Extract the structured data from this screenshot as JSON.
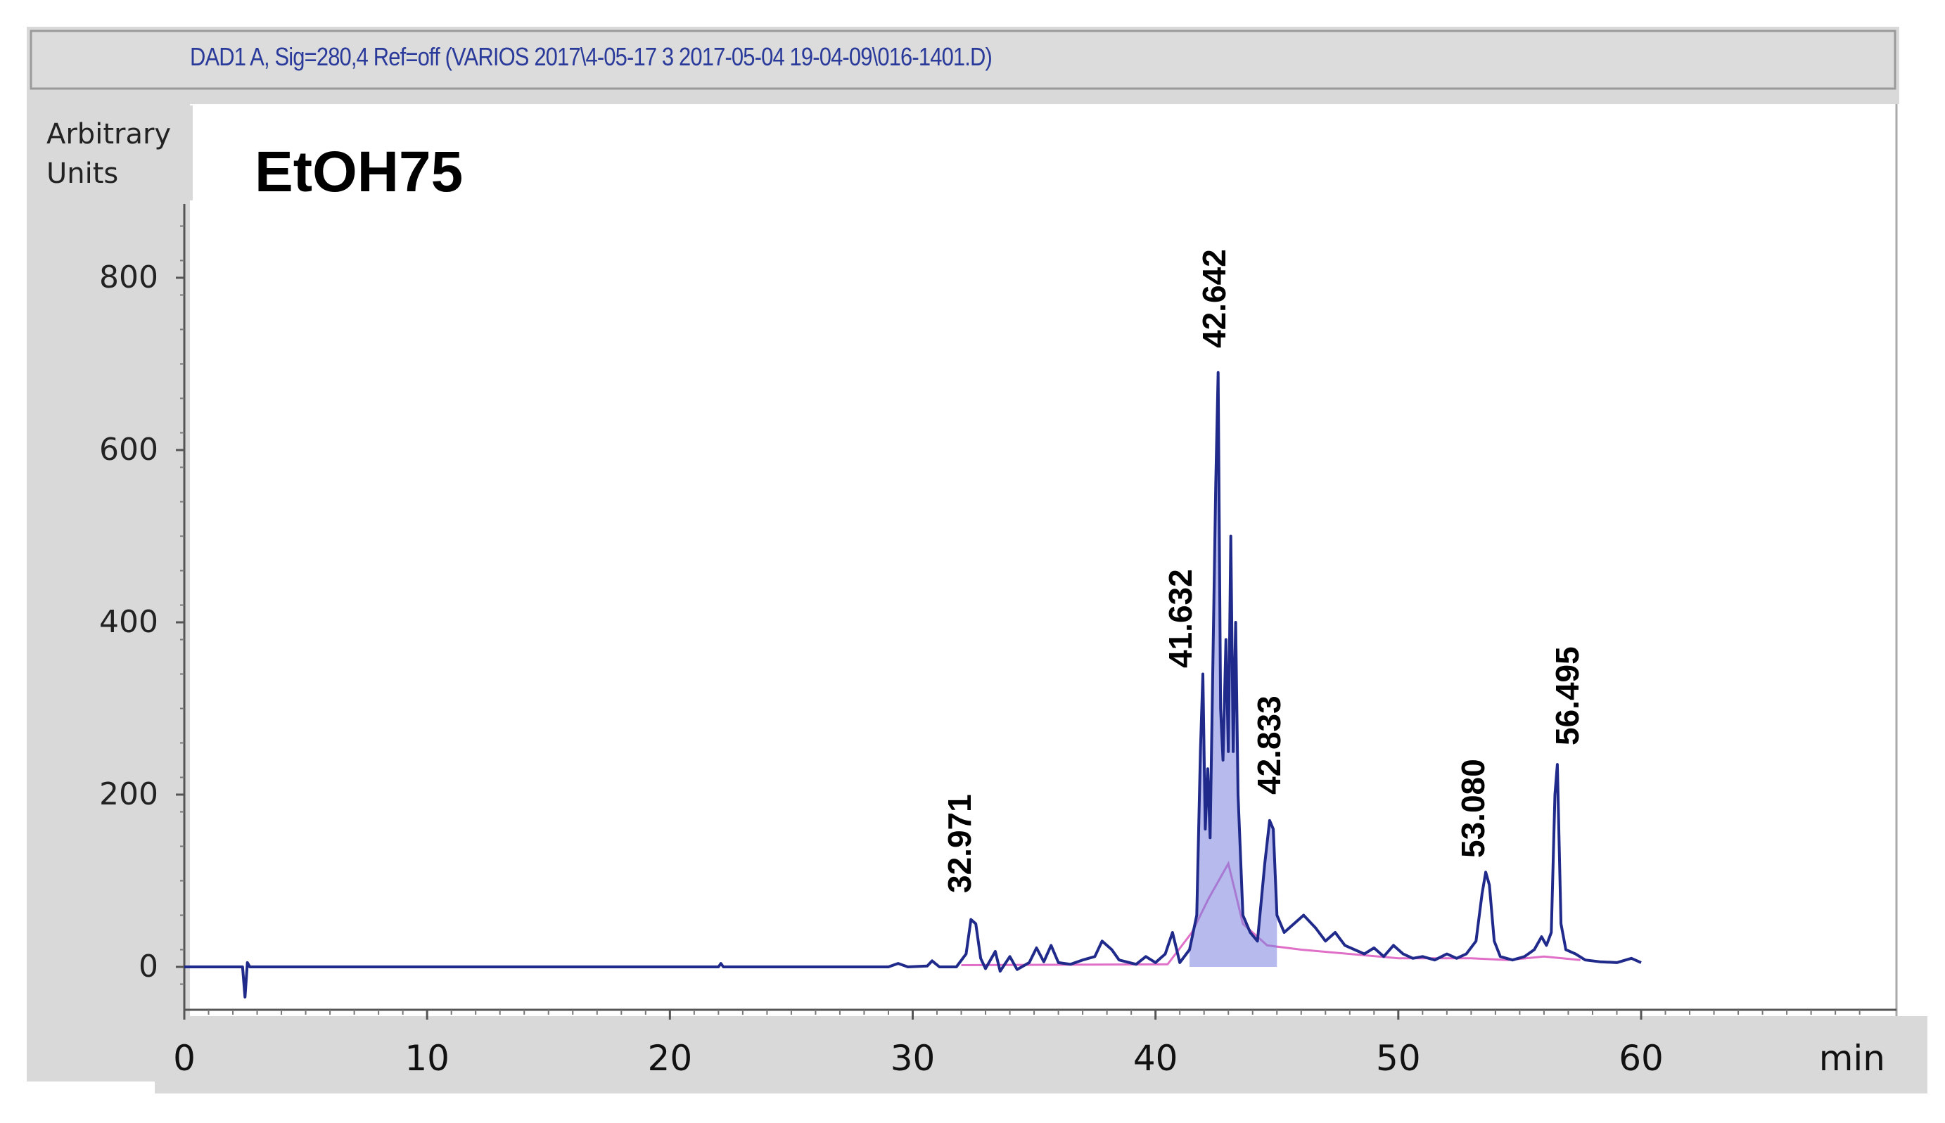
{
  "header": {
    "signal_text": "DAD1 A, Sig=280,4 Ref=off (VARIOS 2017\\4-05-17 3 2017-05-04 19-04-09\\016-1401.D)"
  },
  "y_axis_label": [
    "Arbitrary",
    "Units"
  ],
  "sample_label": "EtOH75",
  "chart_data": {
    "type": "line",
    "title": "EtOH75",
    "xlabel": "min",
    "ylabel": "Arbitrary Units",
    "xlim": [
      0,
      60
    ],
    "ylim": [
      -40,
      900
    ],
    "x_ticks": [
      0,
      10,
      20,
      30,
      40,
      50,
      60
    ],
    "y_ticks": [
      0,
      200,
      400,
      600,
      800
    ],
    "grid": false,
    "colors": {
      "signal": "#1f2a8a",
      "fill": "#7a82dc",
      "baseline": "#e06fc8",
      "peak_labels": "#000000"
    },
    "series": [
      {
        "points": [
          [
            0,
            0
          ],
          [
            2.4,
            0
          ],
          [
            2.5,
            -35
          ],
          [
            2.6,
            5
          ],
          [
            2.7,
            0
          ],
          [
            22,
            0
          ],
          [
            22.1,
            4
          ],
          [
            22.2,
            0
          ],
          [
            29,
            0
          ],
          [
            29.4,
            4
          ],
          [
            29.8,
            0
          ],
          [
            30.6,
            1
          ],
          [
            30.8,
            7
          ],
          [
            31.1,
            0
          ],
          [
            31.8,
            0
          ],
          [
            32.2,
            15
          ],
          [
            32.4,
            55
          ],
          [
            32.6,
            50
          ],
          [
            32.8,
            10
          ],
          [
            33.0,
            -2
          ],
          [
            33.4,
            18
          ],
          [
            33.6,
            -5
          ],
          [
            34.0,
            12
          ],
          [
            34.3,
            -3
          ],
          [
            34.8,
            5
          ],
          [
            35.1,
            22
          ],
          [
            35.4,
            6
          ],
          [
            35.7,
            25
          ],
          [
            36.0,
            5
          ],
          [
            36.5,
            3
          ],
          [
            37.0,
            8
          ],
          [
            37.5,
            12
          ],
          [
            37.8,
            30
          ],
          [
            38.2,
            20
          ],
          [
            38.5,
            8
          ],
          [
            39.2,
            3
          ],
          [
            39.6,
            12
          ],
          [
            40.0,
            5
          ],
          [
            40.4,
            15
          ],
          [
            40.7,
            40
          ],
          [
            41.0,
            5
          ],
          [
            41.4,
            20
          ],
          [
            41.7,
            60
          ],
          [
            41.85,
            250
          ],
          [
            41.95,
            340
          ],
          [
            42.05,
            160
          ],
          [
            42.15,
            230
          ],
          [
            42.25,
            150
          ],
          [
            42.35,
            330
          ],
          [
            42.48,
            560
          ],
          [
            42.58,
            690
          ],
          [
            42.68,
            300
          ],
          [
            42.78,
            240
          ],
          [
            42.9,
            380
          ],
          [
            43.0,
            250
          ],
          [
            43.1,
            500
          ],
          [
            43.2,
            250
          ],
          [
            43.3,
            400
          ],
          [
            43.4,
            200
          ],
          [
            43.6,
            60
          ],
          [
            43.9,
            40
          ],
          [
            44.2,
            30
          ],
          [
            44.5,
            120
          ],
          [
            44.7,
            170
          ],
          [
            44.85,
            160
          ],
          [
            45.0,
            60
          ],
          [
            45.3,
            40
          ],
          [
            45.7,
            50
          ],
          [
            46.1,
            60
          ],
          [
            46.6,
            45
          ],
          [
            47.0,
            30
          ],
          [
            47.4,
            40
          ],
          [
            47.8,
            25
          ],
          [
            48.2,
            20
          ],
          [
            48.6,
            15
          ],
          [
            49.0,
            22
          ],
          [
            49.4,
            12
          ],
          [
            49.8,
            25
          ],
          [
            50.2,
            15
          ],
          [
            50.6,
            10
          ],
          [
            51.0,
            12
          ],
          [
            51.5,
            8
          ],
          [
            52.0,
            15
          ],
          [
            52.4,
            10
          ],
          [
            52.8,
            15
          ],
          [
            53.2,
            30
          ],
          [
            53.45,
            85
          ],
          [
            53.6,
            110
          ],
          [
            53.75,
            95
          ],
          [
            53.95,
            30
          ],
          [
            54.2,
            12
          ],
          [
            54.7,
            8
          ],
          [
            55.2,
            12
          ],
          [
            55.6,
            20
          ],
          [
            55.9,
            35
          ],
          [
            56.1,
            25
          ],
          [
            56.3,
            40
          ],
          [
            56.45,
            200
          ],
          [
            56.55,
            235
          ],
          [
            56.7,
            50
          ],
          [
            56.9,
            20
          ],
          [
            57.3,
            15
          ],
          [
            57.7,
            8
          ],
          [
            58.3,
            6
          ],
          [
            59.0,
            5
          ],
          [
            59.6,
            10
          ],
          [
            60.0,
            5
          ]
        ]
      }
    ],
    "peak_labels": [
      {
        "x": 32.971,
        "text": "32.971"
      },
      {
        "x": 41.632,
        "text": "41.632"
      },
      {
        "x": 42.642,
        "text": "42.642"
      },
      {
        "x": 42.833,
        "text": "42.833"
      },
      {
        "x": 53.08,
        "text": "53.080"
      },
      {
        "x": 56.495,
        "text": "56.495"
      }
    ]
  }
}
